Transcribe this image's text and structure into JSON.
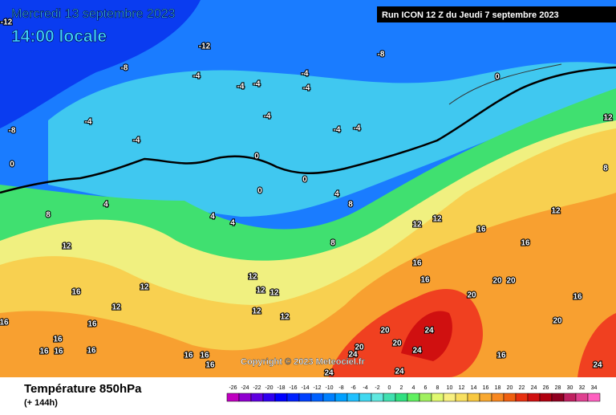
{
  "header": {
    "date": "Mercredi 13 septembre 2023",
    "time": "14:00 locale",
    "run": "Run ICON 12 Z du Jeudi 7 septembre 2023"
  },
  "copyright": "Copyright © 2023 Meteociel.fr",
  "footer": {
    "title": "Température 850hPa",
    "lead": "(+ 144h)"
  },
  "legend": {
    "ticks": [
      -26,
      -24,
      -22,
      -20,
      -18,
      -16,
      -14,
      -12,
      -10,
      -8,
      -6,
      -4,
      -2,
      0,
      2,
      4,
      6,
      8,
      10,
      12,
      14,
      16,
      18,
      20,
      22,
      24,
      26,
      28,
      30,
      32,
      34
    ],
    "colors": [
      "#c000c0",
      "#9000d0",
      "#6000e0",
      "#3000f0",
      "#0000ff",
      "#0020ff",
      "#0040ff",
      "#0060ff",
      "#0080ff",
      "#00a0ff",
      "#20c0ff",
      "#40d8f0",
      "#60e8e0",
      "#40e0b0",
      "#30e080",
      "#60f060",
      "#a0f060",
      "#e0f870",
      "#f8f080",
      "#f8e060",
      "#f8c840",
      "#f8a830",
      "#f88820",
      "#f06010",
      "#e83010",
      "#d01010",
      "#b00010",
      "#900020",
      "#c02060",
      "#e04090",
      "#ff60c0"
    ]
  },
  "map": {
    "labels": [
      "-12",
      "-12",
      "-8",
      "-8",
      "-4",
      "-4",
      "-4",
      "-4",
      "-4",
      "-4",
      "-4",
      "-4",
      "-4",
      "-4",
      "-8",
      "0",
      "0",
      "0",
      "0",
      "0",
      "4",
      "4",
      "4",
      "4",
      "8",
      "8",
      "8",
      "12",
      "12",
      "12",
      "12",
      "12",
      "12",
      "12",
      "12",
      "12",
      "12",
      "12",
      "12",
      "8",
      "16",
      "16",
      "16",
      "16",
      "16",
      "16",
      "16",
      "16",
      "16",
      "16",
      "16",
      "16",
      "16",
      "16",
      "16",
      "16",
      "20",
      "20",
      "20",
      "20",
      "20",
      "20",
      "20",
      "24",
      "24",
      "24",
      "24",
      "24",
      "24"
    ]
  }
}
